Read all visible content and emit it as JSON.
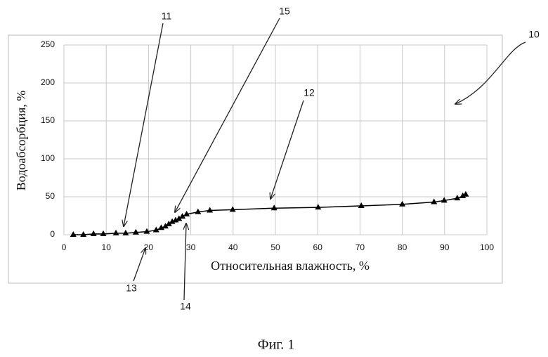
{
  "chart_data": {
    "type": "line",
    "x": [
      2.2,
      4.6,
      7,
      9.3,
      12.3,
      14.6,
      17,
      19.6,
      21.8,
      23,
      24,
      24.8,
      25.6,
      26.4,
      27.2,
      28,
      29,
      31.7,
      34.5,
      39.9,
      49.7,
      60.1,
      70.3,
      80,
      87.5,
      89.9,
      93,
      94.3,
      95
    ],
    "values": [
      0,
      0,
      1,
      1,
      2,
      2,
      3,
      4,
      6,
      9,
      11,
      14,
      17,
      19,
      21,
      24,
      27,
      30,
      32,
      33,
      35,
      36,
      38,
      40,
      43,
      45,
      48,
      51,
      53
    ],
    "color": "#000000",
    "xlim": [
      0,
      100
    ],
    "xticks": [
      0,
      10,
      20,
      30,
      40,
      50,
      60,
      70,
      80,
      90,
      100
    ],
    "ylim": [
      0,
      250
    ],
    "yticks": [
      0,
      50,
      100,
      150,
      200,
      250
    ],
    "grid": true,
    "x_label": "Относительная влажность, %",
    "y_label": "Водоабсорбция, %",
    "annotations": [
      "10",
      "11",
      "12",
      "13",
      "14",
      "15"
    ],
    "caption": "Фиг. 1"
  }
}
